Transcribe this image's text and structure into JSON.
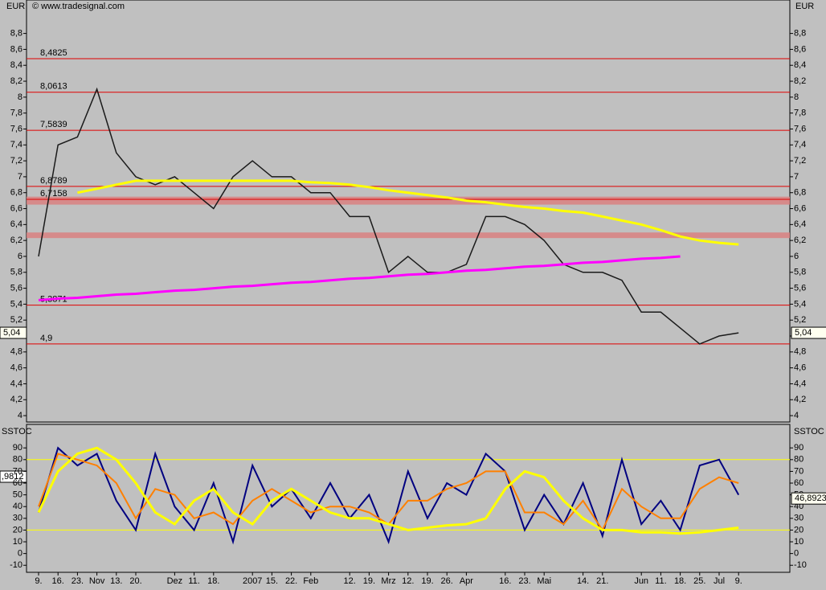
{
  "chart_data": [
    {
      "type": "line",
      "unit": "EUR",
      "source": "© www.tradesignal.com",
      "categories": [
        "9.",
        "16.",
        "23.",
        "Nov",
        "13.",
        "20.",
        null,
        "Dez",
        "11.",
        "18.",
        null,
        "2007",
        "15.",
        "22.",
        "Feb",
        null,
        "12.",
        "19.",
        "Mrz",
        "12.",
        "19.",
        "26.",
        "Apr",
        null,
        "16.",
        "23.",
        "Mai",
        null,
        "14.",
        "21.",
        null,
        "Jun",
        "11.",
        "18.",
        "25.",
        "Jul",
        "9."
      ],
      "series": [
        {
          "color": "#1a1a1a",
          "width": 1.5,
          "values": [
            6.0,
            7.4,
            7.5,
            8.1,
            7.3,
            7.0,
            6.9,
            7.0,
            6.8,
            6.6,
            7.0,
            7.2,
            7.0,
            7.0,
            6.8,
            6.8,
            6.5,
            6.5,
            5.8,
            6.0,
            5.8,
            5.8,
            5.9,
            6.5,
            6.5,
            6.4,
            6.2,
            5.9,
            5.8,
            5.8,
            5.7,
            5.3,
            5.3,
            5.1,
            4.9,
            5.0,
            5.04
          ]
        },
        {
          "color": "#ffff00",
          "width": 3,
          "values": [
            null,
            null,
            6.8,
            6.85,
            6.9,
            6.95,
            6.95,
            6.95,
            6.95,
            6.95,
            6.95,
            6.95,
            6.95,
            6.95,
            6.93,
            6.92,
            6.9,
            6.87,
            6.83,
            6.8,
            6.77,
            6.74,
            6.7,
            6.68,
            6.65,
            6.62,
            6.6,
            6.57,
            6.55,
            6.5,
            6.45,
            6.4,
            6.33,
            6.25,
            6.2,
            6.17,
            6.15
          ]
        },
        {
          "color": "#ff00ff",
          "width": 3,
          "values": [
            5.45,
            5.47,
            5.48,
            5.5,
            5.52,
            5.53,
            5.55,
            5.57,
            5.58,
            5.6,
            5.62,
            5.63,
            5.65,
            5.67,
            5.68,
            5.7,
            5.72,
            5.73,
            5.75,
            5.77,
            5.78,
            5.8,
            5.82,
            5.83,
            5.85,
            5.87,
            5.88,
            5.9,
            5.92,
            5.93,
            5.95,
            5.97,
            5.98,
            6.0,
            null,
            null,
            null
          ]
        }
      ],
      "levels": [
        {
          "value": 8.4825,
          "label": "8,4825"
        },
        {
          "value": 8.0613,
          "label": "8,0613"
        },
        {
          "value": 7.5839,
          "label": "7,5839"
        },
        {
          "value": 6.8789,
          "label": "6,8789"
        },
        {
          "value": 6.7158,
          "label": "6,7158"
        },
        {
          "value": 5.3871,
          "label": "5,3871"
        },
        {
          "value": 4.9,
          "label": "4,9"
        }
      ],
      "bands": [
        [
          6.65,
          6.75
        ],
        [
          6.23,
          6.3
        ]
      ],
      "last": {
        "value": 5.04,
        "label": "5,04"
      },
      "ylim": [
        3.92,
        9.22
      ],
      "yticks": [
        {
          "value": 4,
          "label": "4"
        },
        {
          "value": 4.2,
          "label": "4,2"
        },
        {
          "value": 4.4,
          "label": "4,4"
        },
        {
          "value": 4.6,
          "label": "4,6"
        },
        {
          "value": 4.8,
          "label": "4,8"
        },
        {
          "value": 5,
          "label": "5"
        },
        {
          "value": 5.2,
          "label": "5,2"
        },
        {
          "value": 5.4,
          "label": "5,4"
        },
        {
          "value": 5.6,
          "label": "5,6"
        },
        {
          "value": 5.8,
          "label": "5,8"
        },
        {
          "value": 6,
          "label": "6"
        },
        {
          "value": 6.2,
          "label": "6,2"
        },
        {
          "value": 6.4,
          "label": "6,4"
        },
        {
          "value": 6.6,
          "label": "6,6"
        },
        {
          "value": 6.8,
          "label": "6,8"
        },
        {
          "value": 7,
          "label": "7"
        },
        {
          "value": 7.2,
          "label": "7,2"
        },
        {
          "value": 7.4,
          "label": "7,4"
        },
        {
          "value": 7.6,
          "label": "7,6"
        },
        {
          "value": 7.8,
          "label": "7,8"
        },
        {
          "value": 8,
          "label": "8"
        },
        {
          "value": 8.2,
          "label": "8,2"
        },
        {
          "value": 8.4,
          "label": "8,4"
        },
        {
          "value": 8.6,
          "label": "8,6"
        },
        {
          "value": 8.8,
          "label": "8,8"
        }
      ]
    },
    {
      "type": "line",
      "title": "SSTOC",
      "series": [
        {
          "color": "#000080",
          "width": 2,
          "values": [
            35,
            90,
            75,
            85,
            45,
            20,
            85,
            40,
            20,
            60,
            10,
            75,
            40,
            55,
            30,
            60,
            30,
            50,
            10,
            70,
            30,
            60,
            50,
            85,
            70,
            20,
            50,
            25,
            60,
            15,
            80,
            25,
            45,
            20,
            75,
            80,
            50
          ]
        },
        {
          "color": "#ff8000",
          "width": 2,
          "values": [
            40,
            85,
            80,
            75,
            60,
            30,
            55,
            50,
            30,
            35,
            25,
            45,
            55,
            45,
            35,
            40,
            40,
            35,
            25,
            45,
            45,
            55,
            60,
            70,
            70,
            35,
            35,
            25,
            45,
            20,
            55,
            40,
            30,
            30,
            55,
            65,
            60
          ]
        },
        {
          "color": "#ffff00",
          "width": 3,
          "values": [
            35,
            70,
            85,
            90,
            80,
            60,
            35,
            25,
            45,
            55,
            35,
            25,
            45,
            55,
            45,
            35,
            30,
            30,
            25,
            20,
            22,
            24,
            25,
            30,
            55,
            70,
            65,
            45,
            30,
            20,
            20,
            18,
            18,
            17,
            18,
            20,
            22
          ]
        }
      ],
      "reference_lines": [
        80,
        20
      ],
      "last": {
        "value": 46.8923,
        "label": "46,8923"
      },
      "left_label": ",9812",
      "ylim": [
        -16,
        110
      ],
      "yticks": [
        -10,
        0,
        10,
        20,
        30,
        40,
        50,
        60,
        70,
        80,
        90
      ]
    }
  ]
}
